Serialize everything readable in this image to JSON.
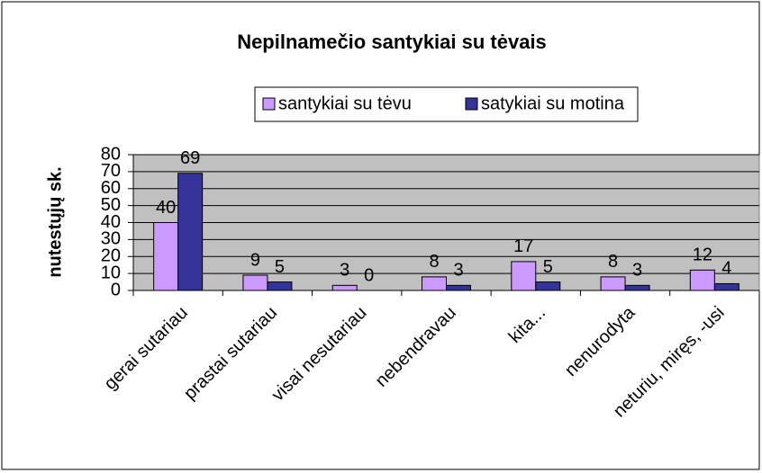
{
  "chart_data": {
    "type": "bar",
    "title": "Nepilnamečio santykiai su tėvais",
    "y_label": "nutestųjų sk.",
    "categories": [
      "gerai sutariau",
      "prastai sutariau",
      "visai nesutariau",
      "nebendravau",
      "kita...",
      "nenurodyta",
      "neturiu, miręs, -usi"
    ],
    "series": [
      {
        "name": "santykiai su tėvu",
        "color": "#cc99ff",
        "values": [
          40,
          9,
          3,
          8,
          17,
          8,
          12
        ]
      },
      {
        "name": "satykiai su motina",
        "color": "#333399",
        "values": [
          69,
          5,
          0,
          3,
          5,
          3,
          4
        ]
      }
    ],
    "ylim": [
      0,
      80
    ],
    "yticks": [
      0,
      10,
      20,
      30,
      40,
      50,
      60,
      70,
      80
    ],
    "grid": true,
    "legend": "top"
  }
}
